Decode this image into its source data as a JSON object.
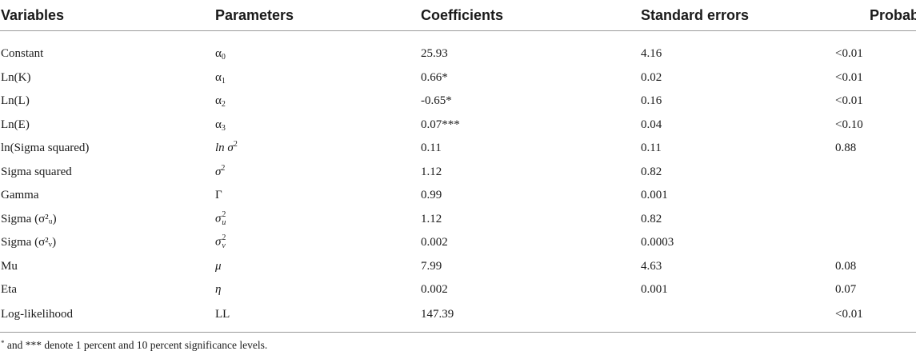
{
  "table": {
    "headers": [
      "Variables",
      "Parameters",
      "Coefficients",
      "Standard errors",
      "Probability"
    ],
    "rows": [
      {
        "variable": "Constant",
        "param_base": "α",
        "param_sub": "0",
        "param_sup": "",
        "param_style": "normal",
        "coefficient": "25.93",
        "std_error": "4.16",
        "probability": "<0.01"
      },
      {
        "variable": "Ln(K)",
        "param_base": "α",
        "param_sub": "1",
        "param_sup": "",
        "param_style": "normal",
        "coefficient": "0.66*",
        "std_error": "0.02",
        "probability": "<0.01"
      },
      {
        "variable": "Ln(L)",
        "param_base": "α",
        "param_sub": "2",
        "param_sup": "",
        "param_style": "normal",
        "coefficient": "-0.65*",
        "std_error": "0.16",
        "probability": "<0.01"
      },
      {
        "variable": "Ln(E)",
        "param_base": "α",
        "param_sub": "3",
        "param_sup": "",
        "param_style": "normal",
        "coefficient": "0.07***",
        "std_error": "0.04",
        "probability": "<0.10"
      },
      {
        "variable": "ln(Sigma squared)",
        "param_base": "ln σ",
        "param_sub": "",
        "param_sup": "2",
        "param_style": "italic",
        "coefficient": "0.11",
        "std_error": "0.11",
        "probability": "0.88"
      },
      {
        "variable": "Sigma squared",
        "param_base": "σ",
        "param_sub": "",
        "param_sup": "2",
        "param_style": "italic",
        "coefficient": "1.12",
        "std_error": "0.82",
        "probability": ""
      },
      {
        "variable": "Gamma",
        "param_base": "Γ",
        "param_sub": "",
        "param_sup": "",
        "param_style": "normal",
        "coefficient": "0.99",
        "std_error": "0.001",
        "probability": ""
      },
      {
        "variable": "Sigma (σ²ᵤ)",
        "param_base": "σ",
        "param_sub": "u",
        "param_sup": "2",
        "param_style": "italic",
        "coefficient": "1.12",
        "std_error": "0.82",
        "probability": ""
      },
      {
        "variable": "Sigma (σ²ᵥ)",
        "param_base": "σ",
        "param_sub": "v",
        "param_sup": "2",
        "param_style": "italic",
        "coefficient": "0.002",
        "std_error": "0.0003",
        "probability": ""
      },
      {
        "variable": "Mu",
        "param_base": "μ",
        "param_sub": "",
        "param_sup": "",
        "param_style": "italic",
        "coefficient": "7.99",
        "std_error": "4.63",
        "probability": "0.08"
      },
      {
        "variable": "Eta",
        "param_base": "η",
        "param_sub": "",
        "param_sup": "",
        "param_style": "italic",
        "coefficient": "0.002",
        "std_error": "0.001",
        "probability": "0.07"
      },
      {
        "variable": "Log-likelihood",
        "param_base": "LL",
        "param_sub": "",
        "param_sup": "",
        "param_style": "normal",
        "coefficient": "147.39",
        "std_error": "",
        "probability": "<0.01"
      }
    ]
  },
  "footnote": {
    "marker": "*",
    "text": " and *** denote 1 percent and 10 percent significance levels."
  }
}
